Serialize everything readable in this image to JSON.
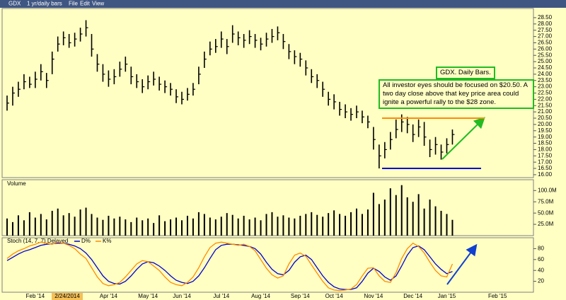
{
  "toolbar": {
    "symbol": "GDX",
    "period": "1 yr/daily bars",
    "menus": [
      "File",
      "Edit",
      "View"
    ]
  },
  "chart_data": [
    {
      "type": "ohlc",
      "annotations": [
        "GDX. Daily Bars.",
        "All investor eyes should be focused on $20.50.  A two day close above that key price area could ignite a powerful rally to the $28 zone."
      ],
      "cursor_label": "2/24/2014",
      "categories": [
        null,
        null,
        null,
        null,
        null,
        "Feb '14",
        null,
        null,
        null,
        null,
        null,
        null,
        null,
        null,
        null,
        null,
        null,
        null,
        "Apr '14",
        null,
        null,
        null,
        null,
        null,
        null,
        "May '14",
        null,
        null,
        null,
        null,
        null,
        "Jun '14",
        null,
        null,
        null,
        null,
        null,
        null,
        "Jul '14",
        null,
        null,
        null,
        null,
        null,
        null,
        "Aug '14",
        null,
        null,
        null,
        null,
        null,
        null,
        "Sep '14",
        null,
        null,
        null,
        null,
        null,
        "Oct '14",
        null,
        null,
        null,
        null,
        null,
        null,
        "Nov '14",
        null,
        null,
        null,
        null,
        null,
        null,
        "Dec '14",
        null,
        null,
        null,
        null,
        null,
        "Jan '15",
        null,
        null,
        null,
        null,
        null,
        null,
        null,
        null,
        "Feb '15",
        null,
        null,
        null,
        null,
        null,
        null
      ],
      "high": [
        22.3,
        23.0,
        23.4,
        24.0,
        23.8,
        24.2,
        24.8,
        24.1,
        25.8,
        27.0,
        27.4,
        27.2,
        27.3,
        27.7,
        28.3,
        27.2,
        25.6,
        24.8,
        24.3,
        24.4,
        25.0,
        25.4,
        24.6,
        24.0,
        23.6,
        23.9,
        24.2,
        23.8,
        23.5,
        23.3,
        22.8,
        22.6,
        22.9,
        23.3,
        24.6,
        25.8,
        26.6,
        26.8,
        27.4,
        26.8,
        27.9,
        27.4,
        27.2,
        27.5,
        27.2,
        26.9,
        27.3,
        27.6,
        27.8,
        27.2,
        26.4,
        25.9,
        25.7,
        25.1,
        24.4,
        24.0,
        23.4,
        22.6,
        22.4,
        21.8,
        21.6,
        21.3,
        21.5,
        21.1,
        20.7,
        19.8,
        18.4,
        18.6,
        19.4,
        20.4,
        20.8,
        20.6,
        20.0,
        20.4,
        20.2,
        18.8,
        19.0,
        18.4,
        18.9,
        19.6,
        null,
        null,
        null,
        null,
        null,
        null,
        null,
        null,
        null,
        null,
        null,
        null,
        null,
        null
      ],
      "low": [
        21.1,
        21.5,
        22.2,
        22.8,
        22.9,
        22.9,
        23.5,
        22.9,
        24.0,
        25.8,
        26.3,
        26.1,
        26.2,
        26.6,
        27.0,
        25.4,
        24.2,
        23.4,
        23.0,
        23.2,
        23.8,
        24.2,
        23.2,
        22.9,
        22.5,
        22.8,
        23.1,
        22.7,
        22.5,
        22.3,
        21.7,
        21.6,
        21.9,
        22.3,
        23.2,
        24.5,
        25.5,
        25.7,
        26.1,
        25.6,
        26.5,
        26.3,
        26.1,
        26.4,
        26.1,
        25.9,
        26.2,
        26.5,
        26.7,
        26.0,
        25.2,
        24.8,
        24.6,
        23.9,
        23.3,
        22.9,
        22.2,
        21.5,
        21.2,
        20.7,
        20.5,
        20.3,
        20.5,
        20.1,
        19.7,
        18.0,
        16.5,
        17.3,
        18.0,
        18.9,
        19.4,
        19.3,
        18.6,
        19.0,
        18.3,
        17.4,
        17.6,
        17.2,
        17.7,
        18.4,
        null,
        null,
        null,
        null,
        null,
        null,
        null,
        null,
        null,
        null,
        null,
        null,
        null,
        null
      ],
      "close": [
        21.7,
        22.5,
        22.8,
        23.4,
        23.2,
        23.6,
        24.2,
        23.5,
        25.2,
        26.4,
        26.9,
        26.5,
        26.8,
        27.2,
        27.7,
        26.0,
        24.8,
        24.0,
        23.6,
        23.8,
        24.4,
        24.8,
        23.8,
        23.4,
        23.0,
        23.4,
        23.6,
        23.2,
        23.0,
        22.8,
        22.2,
        22.0,
        22.4,
        22.8,
        24.0,
        25.2,
        26.0,
        26.2,
        26.8,
        26.2,
        27.2,
        26.9,
        26.7,
        27.0,
        26.7,
        26.4,
        26.8,
        27.0,
        27.3,
        26.6,
        25.8,
        25.4,
        25.2,
        24.5,
        23.8,
        23.5,
        22.8,
        22.0,
        21.8,
        21.2,
        21.0,
        20.8,
        21.0,
        20.6,
        20.2,
        18.8,
        17.5,
        18.0,
        18.8,
        19.6,
        20.2,
        20.0,
        19.2,
        19.8,
        19.0,
        18.0,
        18.4,
        17.8,
        18.4,
        19.2,
        null,
        null,
        null,
        null,
        null,
        null,
        null,
        null,
        null,
        null,
        null,
        null,
        null,
        null
      ],
      "color": "#000000",
      "levels": [
        {
          "value": 20.5,
          "color": "#ff8c00"
        },
        {
          "value": 16.5,
          "color": "#0000cc"
        }
      ],
      "ylim": [
        15.77,
        29.23
      ],
      "yticks": [
        {
          "value": 16,
          "label": "16.00"
        },
        {
          "value": 16.5,
          "label": "16.50"
        },
        {
          "value": 17,
          "label": "17.00"
        },
        {
          "value": 17.5,
          "label": "17.50"
        },
        {
          "value": 18,
          "label": "18.00"
        },
        {
          "value": 18.5,
          "label": "18.50"
        },
        {
          "value": 19,
          "label": "19.00"
        },
        {
          "value": 19.5,
          "label": "19.50"
        },
        {
          "value": 20,
          "label": "20.00"
        },
        {
          "value": 20.5,
          "label": "20.50"
        },
        {
          "value": 21,
          "label": "21.00"
        },
        {
          "value": 21.5,
          "label": "21.50"
        },
        {
          "value": 22,
          "label": "22.00"
        },
        {
          "value": 22.5,
          "label": "22.50"
        },
        {
          "value": 23,
          "label": "23.00"
        },
        {
          "value": 23.5,
          "label": "23.50"
        },
        {
          "value": 24,
          "label": "24.00"
        },
        {
          "value": 24.5,
          "label": "24.50"
        },
        {
          "value": 25,
          "label": "25.00"
        },
        {
          "value": 25.5,
          "label": "25.50"
        },
        {
          "value": 26,
          "label": "26.00"
        },
        {
          "value": 26.5,
          "label": "26.50"
        },
        {
          "value": 27,
          "label": "27.00"
        },
        {
          "value": 27.5,
          "label": "27.50"
        },
        {
          "value": 28,
          "label": "28.00"
        },
        {
          "value": 28.5,
          "label": "28.50"
        }
      ]
    },
    {
      "type": "bar",
      "title": "Volume",
      "color": "#000000",
      "values": [
        38000000,
        30000000,
        45000000,
        34000000,
        52000000,
        40000000,
        48000000,
        36000000,
        55000000,
        60000000,
        45000000,
        50000000,
        42000000,
        58000000,
        62000000,
        48000000,
        40000000,
        35000000,
        44000000,
        38000000,
        42000000,
        36000000,
        30000000,
        40000000,
        34000000,
        38000000,
        28000000,
        45000000,
        32000000,
        36000000,
        40000000,
        34000000,
        44000000,
        38000000,
        52000000,
        48000000,
        40000000,
        36000000,
        42000000,
        50000000,
        46000000,
        38000000,
        44000000,
        36000000,
        40000000,
        34000000,
        48000000,
        52000000,
        42000000,
        45000000,
        40000000,
        38000000,
        44000000,
        48000000,
        52000000,
        46000000,
        42000000,
        50000000,
        56000000,
        48000000,
        44000000,
        52000000,
        60000000,
        48000000,
        58000000,
        95000000,
        70000000,
        80000000,
        105000000,
        90000000,
        112000000,
        85000000,
        75000000,
        92000000,
        60000000,
        80000000,
        65000000,
        55000000,
        48000000,
        35000000,
        null,
        null,
        null,
        null,
        null,
        null,
        null,
        null,
        null,
        null,
        null,
        null,
        null,
        null
      ],
      "ylim": [
        0,
        124000000
      ],
      "yticks": [
        {
          "value": 25000000,
          "label": "25.0M"
        },
        {
          "value": 50000000,
          "label": "50.0M"
        },
        {
          "value": 75000000,
          "label": "75.0M"
        },
        {
          "value": 100000000,
          "label": "100.0M"
        }
      ]
    },
    {
      "type": "line",
      "title": "Stoch (14, 7, 7) Delayed",
      "series": [
        {
          "name": "D%",
          "color": "#0000cc",
          "values": [
            58,
            64,
            70,
            75,
            78,
            82,
            86,
            88,
            89,
            90,
            90,
            88,
            85,
            80,
            72,
            60,
            45,
            30,
            20,
            16,
            15,
            20,
            30,
            42,
            52,
            56,
            54,
            48,
            40,
            30,
            22,
            18,
            16,
            20,
            30,
            45,
            62,
            78,
            86,
            88,
            88,
            87,
            86,
            84,
            80,
            70,
            55,
            42,
            34,
            32,
            40,
            55,
            65,
            68,
            60,
            45,
            30,
            18,
            10,
            6,
            5,
            5,
            8,
            20,
            35,
            44,
            38,
            28,
            22,
            30,
            48,
            68,
            82,
            85,
            78,
            65,
            52,
            42,
            34,
            38,
            null,
            null,
            null,
            null,
            null,
            null,
            null,
            null,
            null,
            null,
            null,
            null,
            null,
            null
          ]
        },
        {
          "name": "K%",
          "color": "#ff8c00",
          "values": [
            62,
            70,
            76,
            80,
            85,
            88,
            92,
            90,
            88,
            92,
            90,
            86,
            80,
            70,
            62,
            45,
            28,
            16,
            12,
            14,
            18,
            28,
            40,
            52,
            58,
            56,
            48,
            40,
            28,
            18,
            14,
            12,
            18,
            28,
            45,
            65,
            82,
            90,
            92,
            90,
            88,
            86,
            88,
            84,
            76,
            60,
            44,
            32,
            26,
            30,
            52,
            68,
            72,
            66,
            50,
            35,
            20,
            8,
            4,
            3,
            4,
            6,
            14,
            30,
            44,
            45,
            30,
            20,
            18,
            36,
            62,
            80,
            90,
            84,
            72,
            55,
            40,
            30,
            28,
            52,
            null,
            null,
            null,
            null,
            null,
            null,
            null,
            null,
            null,
            null,
            null,
            null,
            null,
            null
          ]
        }
      ],
      "ylim": [
        0,
        100
      ],
      "yticks": [
        20,
        40,
        60,
        80
      ]
    }
  ]
}
